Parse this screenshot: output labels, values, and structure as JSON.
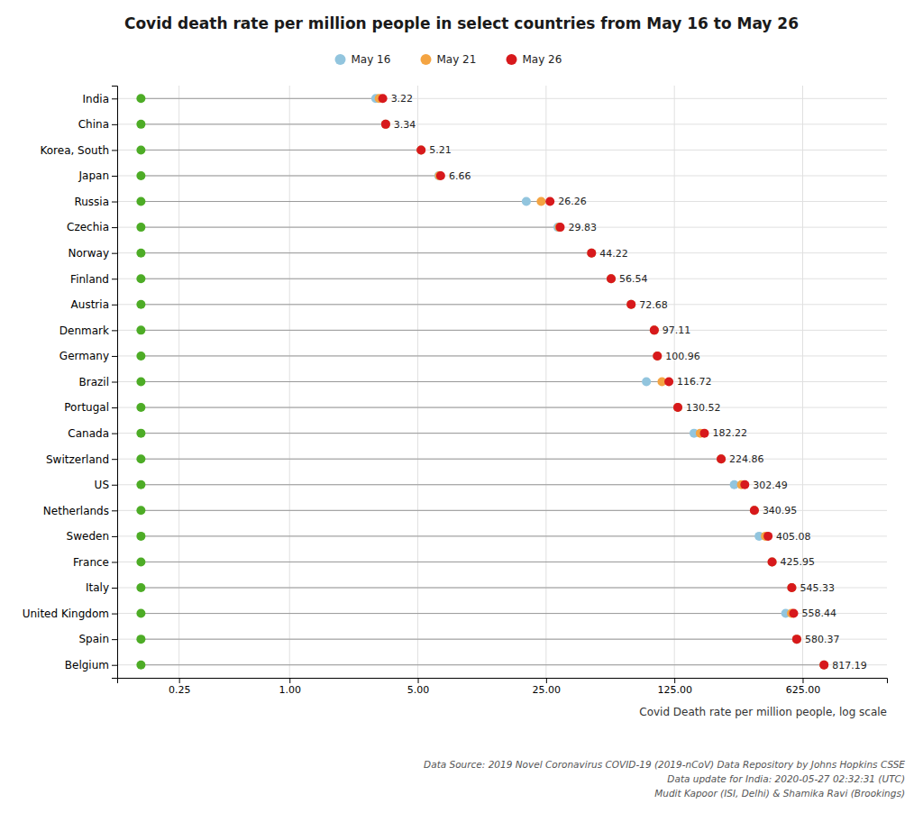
{
  "chart_data": {
    "type": "dot",
    "title": "Covid death rate per million people in select countries from May 16 to May 26",
    "xlabel": "Covid Death rate per million people, log scale",
    "annotations": [
      "Data Source: 2019 Novel Coronavirus COVID-19 (2019-nCoV) Data Repository by Johns Hopkins CSSE",
      "Data update for India: 2020-05-27 02:32:31 (UTC)",
      "Mudit Kapoor (ISI, Delhi) & Shamika Ravi (Brookings)"
    ],
    "categories": [
      "India",
      "China",
      "Korea, South",
      "Japan",
      "Russia",
      "Czechia",
      "Norway",
      "Finland",
      "Austria",
      "Denmark",
      "Germany",
      "Brazil",
      "Portugal",
      "Canada",
      "Switzerland",
      "US",
      "Netherlands",
      "Sweden",
      "France",
      "Italy",
      "United Kingdom",
      "Spain",
      "Belgium"
    ],
    "series": [
      {
        "color": "#4dac26",
        "values": [
          0.155,
          0.155,
          0.155,
          0.155,
          0.155,
          0.155,
          0.155,
          0.155,
          0.155,
          0.155,
          0.155,
          0.155,
          0.155,
          0.155,
          0.155,
          0.155,
          0.155,
          0.155,
          0.155,
          0.155,
          0.155,
          0.155,
          0.155
        ]
      },
      {
        "name": "May 16",
        "color": "#92c5de",
        "values": [
          2.95,
          3.34,
          5.21,
          6.5,
          19.5,
          29.0,
          44.22,
          56.54,
          72.68,
          97.11,
          100.96,
          88.0,
          130.52,
          160.0,
          224.86,
          265.0,
          340.95,
          362.0,
          425.95,
          545.33,
          505.0,
          580.37,
          817.19
        ]
      },
      {
        "name": "May 21",
        "color": "#f4a442",
        "values": [
          3.08,
          3.34,
          5.21,
          6.55,
          23.5,
          29.5,
          44.22,
          56.54,
          72.68,
          97.11,
          100.96,
          107.0,
          130.52,
          173.0,
          224.86,
          290.0,
          340.95,
          392.0,
          425.95,
          545.33,
          543.0,
          580.37,
          817.19
        ]
      },
      {
        "name": "May 26",
        "color": "#d7191c",
        "data_labels": true,
        "values": [
          3.22,
          3.34,
          5.21,
          6.66,
          26.26,
          29.83,
          44.22,
          56.54,
          72.68,
          97.11,
          100.96,
          116.72,
          130.52,
          182.22,
          224.86,
          302.49,
          340.95,
          405.08,
          425.95,
          545.33,
          558.44,
          580.37,
          817.19
        ]
      }
    ],
    "xlim": [
      0.115,
      1800
    ],
    "xticks": [
      0.25,
      {
        "value": 1.0,
        "label": "1.00"
      },
      {
        "value": 5.0,
        "label": "5.00"
      },
      {
        "value": 25.0,
        "label": "25.00"
      },
      {
        "value": 125.0,
        "label": "125.00"
      },
      {
        "value": 625.0,
        "label": "625.00"
      }
    ],
    "log": "x",
    "grid": true,
    "legend": "top"
  }
}
